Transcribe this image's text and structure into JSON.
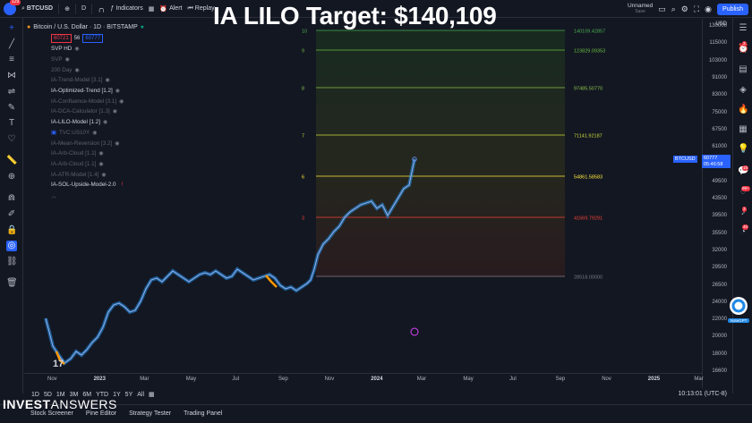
{
  "topbar": {
    "symbol": "BTCUSD",
    "notif_count": "129",
    "interval": "D",
    "indicators_label": "Indicators",
    "alert_label": "Alert",
    "replay_label": "Replay",
    "layout_name": "Unnamed",
    "layout_status": "Save",
    "publish_label": "Publish"
  },
  "overlay_title": "IA LILO Target: $140,109",
  "legend": {
    "symbol_line": "Bitcoin / U.S. Dollar · 1D · BITSTAMP",
    "bid": "60721",
    "spread": "56",
    "ask": "60777",
    "indicators": [
      {
        "label": "SVP HD",
        "on": true
      },
      {
        "label": "SVP",
        "on": false
      },
      {
        "label": "200 Day",
        "on": false
      },
      {
        "label": "IA-Trend-Model [3.1]",
        "on": false
      },
      {
        "label": "IA-Optimized-Trend [1.2]",
        "on": true
      },
      {
        "label": "IA-Confluence-Model [3.1]",
        "on": false
      },
      {
        "label": "IA-DCA-Calculator [1.3]",
        "on": false
      },
      {
        "label": "IA-LILO-Model [1.2]",
        "on": true
      },
      {
        "label": "TVC:US10Y",
        "on": false
      },
      {
        "label": "IA-Mean-Reversion [3.2]",
        "on": false
      },
      {
        "label": "IA-Arb-Cloud [1.1]",
        "on": false
      },
      {
        "label": "IA-Arb-Cloud [1.1]",
        "on": false
      },
      {
        "label": "IA-ATR-Model [1.4]",
        "on": false
      },
      {
        "label": "IA-SOL-Upside-Model-2.0",
        "on": true
      }
    ]
  },
  "levels": [
    {
      "label": "10",
      "value": "140109.42857",
      "color": "#4caf50"
    },
    {
      "label": "9",
      "value": "123829.09353",
      "color": "#6abf40"
    },
    {
      "label": "8",
      "value": "97485.50770",
      "color": "#8bc34a"
    },
    {
      "label": "7",
      "value": "71141.92187",
      "color": "#cddc39"
    },
    {
      "label": "6",
      "value": "54861.58583",
      "color": "#ffeb3b"
    },
    {
      "label": "3",
      "value": "41669.79291",
      "color": "#f44336"
    },
    {
      "label": "",
      "value": "28518.00000",
      "color": "#787b86"
    }
  ],
  "price_axis": {
    "currency": "USD",
    "ticks": [
      "130000",
      "115000",
      "103000",
      "91000",
      "83000",
      "75000",
      "67500",
      "61000",
      "55000",
      "49500",
      "43500",
      "39500",
      "35500",
      "32000",
      "29500",
      "26500",
      "24000",
      "22000",
      "20000",
      "18000",
      "16600"
    ],
    "last_symbol": "BTCUSD",
    "last_price": "60777",
    "countdown": "05:46:58"
  },
  "time_axis": {
    "ticks": [
      "Nov",
      "2023",
      "Mar",
      "May",
      "Jul",
      "Sep",
      "Nov",
      "2024",
      "Mar",
      "May",
      "Jul",
      "Sep",
      "Nov",
      "2025",
      "Mar"
    ]
  },
  "ranges": [
    "1D",
    "5D",
    "1M",
    "3M",
    "6M",
    "YTD",
    "1Y",
    "5Y",
    "All"
  ],
  "clock": "10:13:01 (UTC-8)",
  "footer_tabs": [
    "Stock Screener",
    "Pine Editor",
    "Strategy Tester",
    "Trading Panel"
  ],
  "brand": {
    "bold": "INVEST",
    "rest": "ANSWERS"
  },
  "right_badges": [
    "3",
    "15",
    "99+",
    "3",
    "40"
  ],
  "notegpt_label": "NoteGPT",
  "colors": {
    "accent": "#2962ff",
    "down": "#f23645",
    "price_line": "#5b8def",
    "trend": "#2196f3",
    "orange": "#ff9800"
  }
}
